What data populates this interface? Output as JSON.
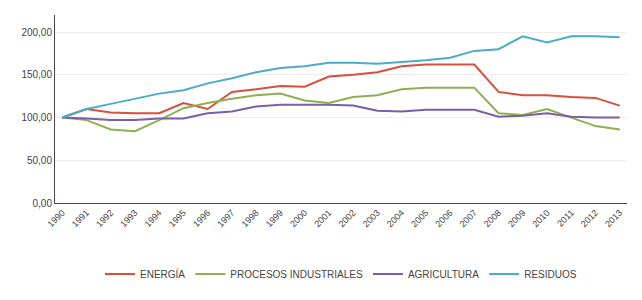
{
  "chart_data": {
    "type": "line",
    "x": [
      1990,
      1991,
      1992,
      1993,
      1994,
      1995,
      1996,
      1997,
      1998,
      1999,
      2000,
      2001,
      2002,
      2003,
      2004,
      2005,
      2006,
      2007,
      2008,
      2009,
      2010,
      2011,
      2012,
      2013
    ],
    "series": [
      {
        "name": "ENERGÍA",
        "color": "#d94f3d",
        "values": [
          100,
          110,
          106,
          105,
          105,
          117,
          110,
          130,
          133,
          137,
          136,
          148,
          150,
          153,
          160,
          162,
          162,
          162,
          130,
          126,
          126,
          124,
          123,
          114
        ]
      },
      {
        "name": "PROCESOS INDUSTRIALES",
        "color": "#8db050",
        "values": [
          100,
          97,
          86,
          84,
          97,
          111,
          117,
          122,
          126,
          128,
          120,
          117,
          124,
          126,
          133,
          135,
          135,
          135,
          105,
          103,
          110,
          100,
          90,
          86
        ]
      },
      {
        "name": "AGRICULTURA",
        "color": "#7b5ea7",
        "values": [
          100,
          99,
          97,
          97,
          99,
          99,
          105,
          107,
          113,
          115,
          115,
          115,
          114,
          108,
          107,
          109,
          109,
          109,
          101,
          102,
          105,
          101,
          100,
          100
        ]
      },
      {
        "name": "RESIDUOS",
        "color": "#4bacc6",
        "values": [
          100,
          110,
          116,
          122,
          128,
          132,
          140,
          146,
          153,
          158,
          160,
          164,
          164,
          163,
          165,
          167,
          170,
          178,
          180,
          195,
          188,
          195,
          195,
          194
        ]
      }
    ],
    "xlim": [
      1989.7,
      2013.3
    ],
    "xticks": [
      1990,
      1991,
      1992,
      1993,
      1994,
      1995,
      1996,
      1997,
      1998,
      1999,
      2000,
      2001,
      2002,
      2003,
      2004,
      2005,
      2006,
      2007,
      2008,
      2009,
      2010,
      2011,
      2012,
      2013
    ],
    "ylim": [
      0,
      220
    ],
    "yticks": [
      {
        "value": 0,
        "label": "0,00"
      },
      {
        "value": 50,
        "label": "50,00"
      },
      {
        "value": 100,
        "label": "100,00"
      },
      {
        "value": 150,
        "label": "150,00"
      },
      {
        "value": 200,
        "label": "200,00"
      }
    ],
    "grid": true,
    "legend": "bottom"
  }
}
